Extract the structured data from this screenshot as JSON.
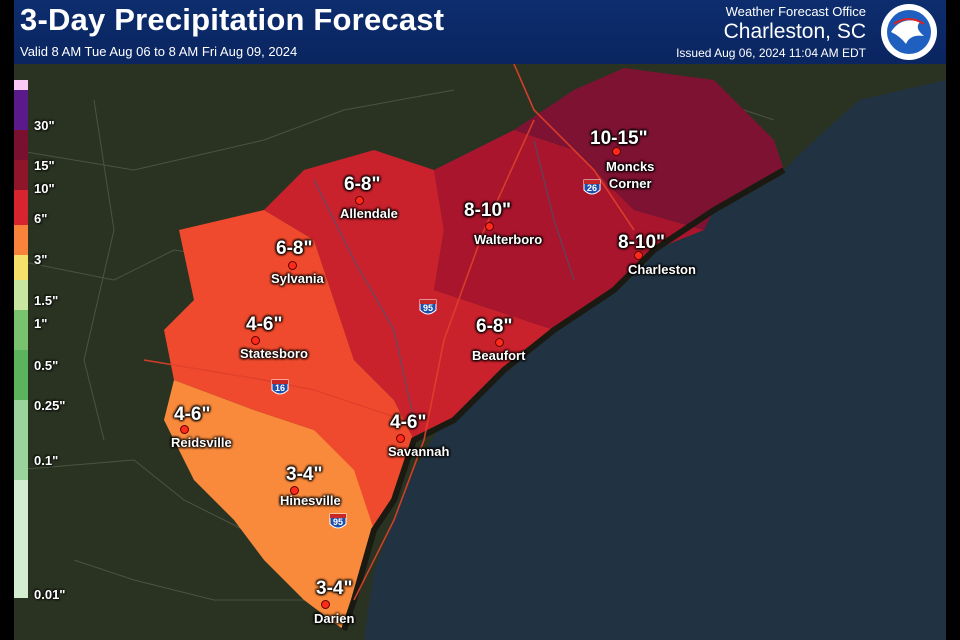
{
  "header": {
    "title": "3-Day Precipitation Forecast",
    "valid": "Valid 8 AM Tue Aug 06 to 8 AM Fri Aug 09, 2024",
    "office": "Weather Forecast Office",
    "city": "Charleston, SC",
    "issued": "Issued Aug 06, 2024 11:04 AM EDT",
    "logo_text": "NATIONAL WEATHER SERVICE"
  },
  "legend": [
    {
      "label": "30\"",
      "color": "#5b1a8a"
    },
    {
      "label": "15\"",
      "color": "#7a1030"
    },
    {
      "label": "10\"",
      "color": "#8e1628"
    },
    {
      "label": "6\"",
      "color": "#d8242e"
    },
    {
      "label": "3\"",
      "color": "#f9833a"
    },
    {
      "label": "1.5\"",
      "color": "#f7e06a"
    },
    {
      "label": "1\"",
      "color": "#c8e6a0"
    },
    {
      "label": "0.5\"",
      "color": "#79c26e"
    },
    {
      "label": "0.25\"",
      "color": "#5bb35d"
    },
    {
      "label": "0.1\"",
      "color": "#9bd39a"
    },
    {
      "label": "0.01\"",
      "color": "#d3efd0"
    }
  ],
  "colors": {
    "ocean": "#213342",
    "land": "#2a3322",
    "zone_10_15": "#7e1233",
    "zone_8_10": "#a8152c",
    "zone_6_8": "#c9222d",
    "zone_4_6": "#ef4a2d",
    "zone_3_4": "#f98a3c"
  },
  "forecast_points": [
    {
      "city": "Moncks\nCorner",
      "amount": "10-15\""
    },
    {
      "city": "Allendale",
      "amount": "6-8\""
    },
    {
      "city": "Walterboro",
      "amount": "8-10\""
    },
    {
      "city": "Charleston",
      "amount": "8-10\""
    },
    {
      "city": "Sylvania",
      "amount": "6-8\""
    },
    {
      "city": "Statesboro",
      "amount": "4-6\""
    },
    {
      "city": "Beaufort",
      "amount": "6-8\""
    },
    {
      "city": "Reidsville",
      "amount": "4-6\""
    },
    {
      "city": "Savannah",
      "amount": "4-6\""
    },
    {
      "city": "Hinesville",
      "amount": "3-4\""
    },
    {
      "city": "Darien",
      "amount": "3-4\""
    }
  ],
  "interstates": [
    "26",
    "95",
    "16",
    "95"
  ]
}
